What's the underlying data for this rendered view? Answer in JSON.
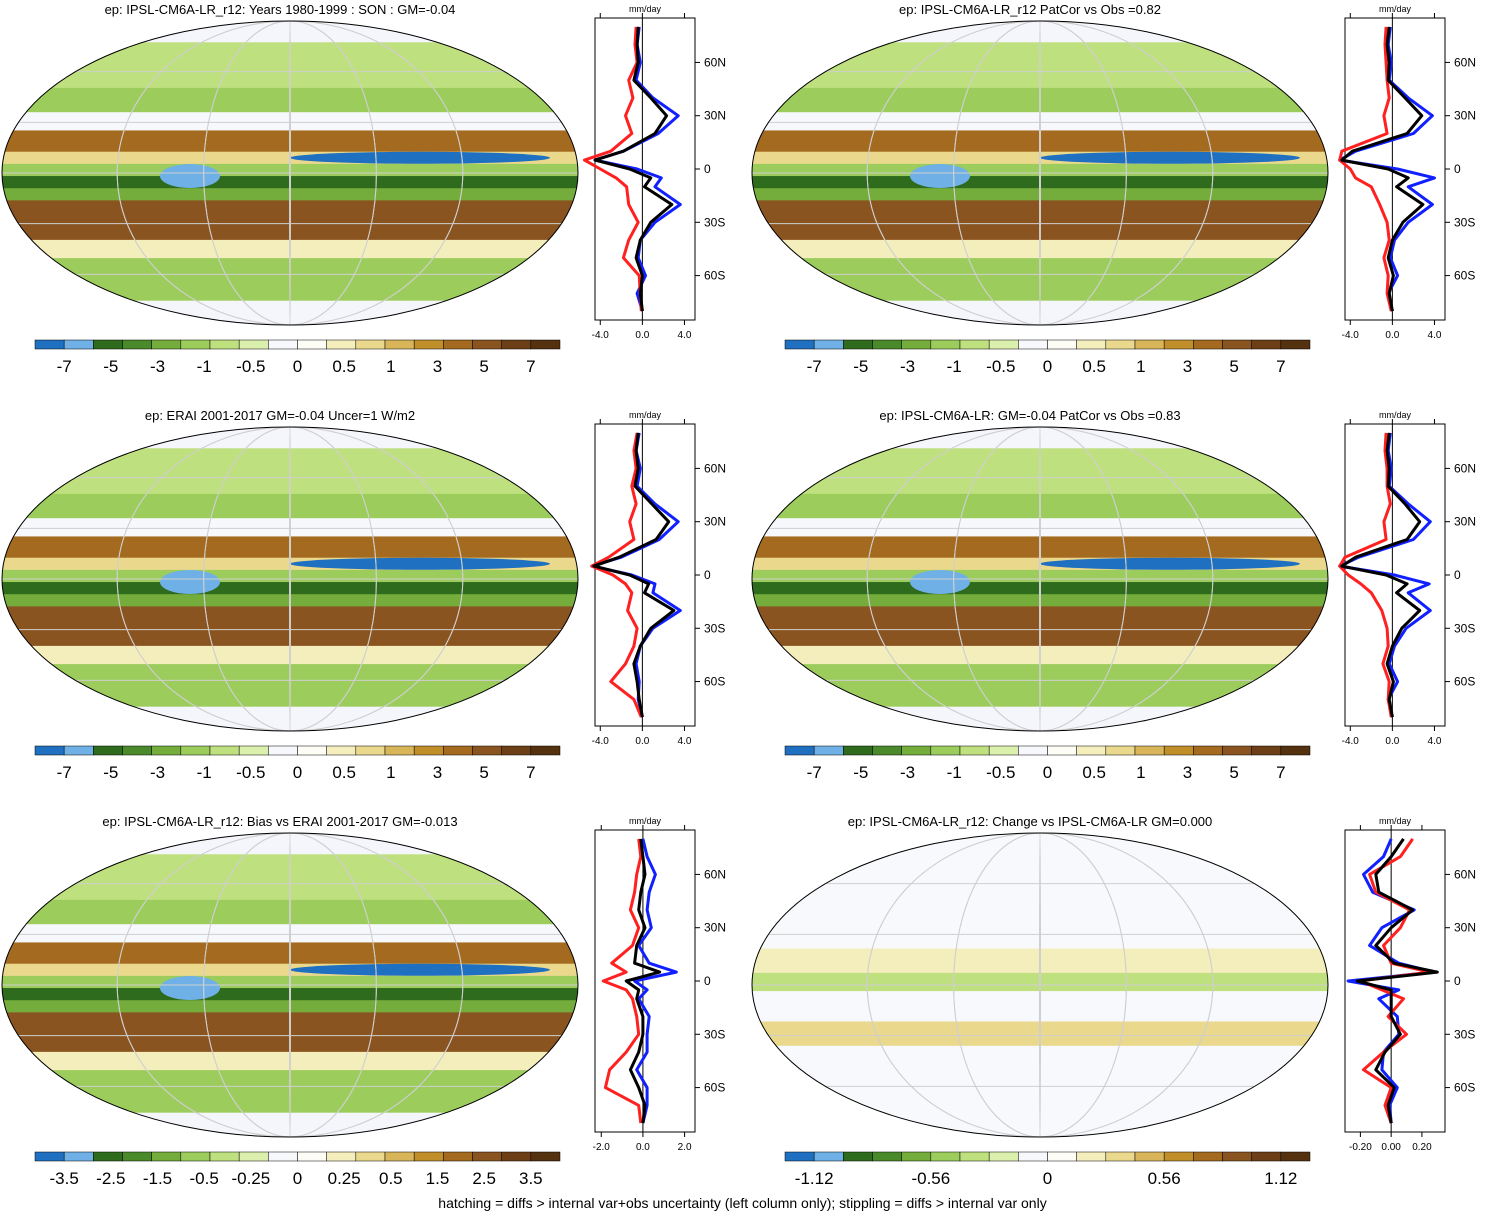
{
  "footer": "hatching = diffs > internal var+obs uncertainty (left column only); stippling = diffs > internal var only",
  "palette": [
    "#1f70c1",
    "#6fb1e6",
    "#2e6b1c",
    "#4a8a2a",
    "#74ad3b",
    "#9ccd5c",
    "#bfe07e",
    "#dcf0ad",
    "#f6f8fb",
    "#fdfdf6",
    "#f4eebc",
    "#ead98d",
    "#d9b55a",
    "#c18f2a",
    "#a46a1f",
    "#8a5420",
    "#6d3f16",
    "#54310f"
  ],
  "line_colors": {
    "model": "#ff2020",
    "obs": "#1020ff",
    "mean": "#000000"
  },
  "chart_data": [
    {
      "type": "heatmap",
      "title": "ep: IPSL-CM6A-LR_r12: Years 1980-1999 : SON : GM=-0.04",
      "colorbar_labels": [
        "-7",
        "-5",
        "-3",
        "-1",
        "-0.5",
        "0",
        "0.5",
        "1",
        "3",
        "5",
        "7"
      ],
      "profile": {
        "unit": "mm/day",
        "xticks": [
          "-4.0",
          "0.0",
          "4.0"
        ],
        "xlim": [
          -4.5,
          5
        ],
        "yticks": [
          "60N",
          "30N",
          "0",
          "30S",
          "60S"
        ],
        "lat": [
          80,
          70,
          60,
          50,
          40,
          30,
          20,
          10,
          5,
          0,
          -5,
          -10,
          -20,
          -30,
          -40,
          -50,
          -60,
          -70,
          -80
        ],
        "series": [
          {
            "name": "",
            "color": "#1020ff",
            "values": [
              -0.3,
              -0.5,
              -0.2,
              -0.6,
              1.0,
              3.4,
              1.5,
              -1.8,
              -4.5,
              -0.5,
              1.8,
              1.2,
              3.6,
              1.2,
              -0.2,
              -0.4,
              0.3,
              -0.5,
              0.0
            ]
          },
          {
            "name": "",
            "color": "#ff2020",
            "values": [
              -0.6,
              -0.7,
              -0.5,
              -1.3,
              -0.9,
              -1.6,
              -1.0,
              -3.0,
              -5.5,
              -4.0,
              -2.5,
              -1.5,
              -1.3,
              -0.4,
              -1.3,
              -1.8,
              -0.3,
              -0.2,
              -0.1
            ]
          },
          {
            "name": "",
            "color": "#000000",
            "values": [
              -0.4,
              -0.5,
              -0.4,
              -0.8,
              0.8,
              2.3,
              1.2,
              -1.8,
              -4.5,
              -1.2,
              0.8,
              0.2,
              2.8,
              0.8,
              -0.2,
              -0.6,
              0.0,
              -0.2,
              0.0
            ]
          }
        ]
      }
    },
    {
      "type": "heatmap",
      "title": "ep: IPSL-CM6A-LR_r12 PatCor vs Obs =0.82",
      "colorbar_labels": [
        "-7",
        "-5",
        "-3",
        "-1",
        "-0.5",
        "0",
        "0.5",
        "1",
        "3",
        "5",
        "7"
      ],
      "profile": {
        "unit": "mm/day",
        "xticks": [
          "-4.0",
          "0.0",
          "4.0"
        ],
        "xlim": [
          -4.5,
          5
        ],
        "yticks": [
          "60N",
          "30N",
          "0",
          "30S",
          "60S"
        ],
        "lat": [
          80,
          70,
          60,
          50,
          40,
          30,
          20,
          10,
          5,
          0,
          -5,
          -10,
          -20,
          -30,
          -40,
          -50,
          -60,
          -70,
          -80
        ],
        "series": [
          {
            "name": "",
            "color": "#1020ff",
            "values": [
              -0.2,
              -0.4,
              -0.1,
              -0.3,
              1.5,
              3.8,
              2.0,
              -3.5,
              -5.0,
              0.5,
              4.0,
              1.5,
              3.8,
              1.5,
              0.2,
              -0.2,
              0.5,
              -0.4,
              0.0
            ]
          },
          {
            "name": "",
            "color": "#ff2020",
            "values": [
              -0.6,
              -0.7,
              -0.6,
              -0.5,
              -0.3,
              -0.8,
              -0.5,
              -4.8,
              -5.0,
              -4.0,
              -3.5,
              -2.0,
              -1.2,
              -0.5,
              -0.3,
              -0.8,
              -0.4,
              -0.5,
              -0.1
            ]
          },
          {
            "name": "",
            "color": "#000000",
            "values": [
              -0.3,
              -0.5,
              -0.3,
              -0.4,
              1.2,
              2.8,
              1.4,
              -3.8,
              -4.8,
              -0.4,
              1.5,
              0.4,
              2.9,
              1.0,
              0.0,
              -0.4,
              0.1,
              -0.3,
              0.0
            ]
          }
        ]
      }
    },
    {
      "type": "heatmap",
      "title": "ep: ERAI 2001-2017 GM=-0.04 Uncer=1 W/m2",
      "colorbar_labels": [
        "-7",
        "-5",
        "-3",
        "-1",
        "-0.5",
        "0",
        "0.5",
        "1",
        "3",
        "5",
        "7"
      ],
      "profile": {
        "unit": "mm/day",
        "xticks": [
          "-4.0",
          "0.0",
          "4.0"
        ],
        "xlim": [
          -4.5,
          5
        ],
        "yticks": [
          "60N",
          "30N",
          "0",
          "30S",
          "60S"
        ],
        "lat": [
          80,
          70,
          60,
          50,
          40,
          30,
          20,
          10,
          5,
          0,
          -5,
          -10,
          -20,
          -30,
          -40,
          -50,
          -60,
          -70,
          -80
        ],
        "series": [
          {
            "name": "",
            "color": "#1020ff",
            "values": [
              -0.3,
              -0.6,
              -0.2,
              -0.5,
              1.2,
              3.4,
              1.6,
              -2.0,
              -4.8,
              -1.0,
              1.2,
              1.0,
              3.6,
              1.0,
              -0.2,
              -0.6,
              -0.3,
              -0.4,
              0.0
            ]
          },
          {
            "name": "",
            "color": "#ff2020",
            "values": [
              -0.5,
              -0.8,
              -0.6,
              -1.0,
              -0.6,
              -1.2,
              -0.8,
              -3.2,
              -4.8,
              -2.8,
              -1.6,
              -1.0,
              -1.4,
              -0.5,
              -0.8,
              -1.6,
              -3.0,
              -0.8,
              -0.1
            ]
          },
          {
            "name": "",
            "color": "#000000",
            "values": [
              -0.4,
              -0.6,
              -0.4,
              -0.7,
              0.9,
              2.5,
              1.3,
              -2.2,
              -4.6,
              -1.2,
              0.6,
              0.2,
              3.0,
              0.8,
              -0.2,
              -0.8,
              -0.5,
              -0.3,
              0.0
            ]
          }
        ]
      }
    },
    {
      "type": "heatmap",
      "title": "ep: IPSL-CM6A-LR: GM=-0.04 PatCor vs Obs =0.83",
      "colorbar_labels": [
        "-7",
        "-5",
        "-3",
        "-1",
        "-0.5",
        "0",
        "0.5",
        "1",
        "3",
        "5",
        "7"
      ],
      "profile": {
        "unit": "mm/day",
        "xticks": [
          "-4.0",
          "0.0",
          "4.0"
        ],
        "xlim": [
          -4.5,
          5
        ],
        "yticks": [
          "60N",
          "30N",
          "0",
          "30S",
          "60S"
        ],
        "lat": [
          80,
          70,
          60,
          50,
          40,
          30,
          20,
          10,
          5,
          0,
          -5,
          -10,
          -20,
          -30,
          -40,
          -50,
          -60,
          -70,
          -80
        ],
        "series": [
          {
            "name": "",
            "color": "#1020ff",
            "values": [
              -0.2,
              -0.4,
              -0.1,
              -0.3,
              1.5,
              3.6,
              2.0,
              -3.2,
              -5.0,
              0.2,
              3.5,
              1.5,
              3.6,
              1.3,
              0.2,
              -0.3,
              0.5,
              -0.4,
              0.0
            ]
          },
          {
            "name": "",
            "color": "#ff2020",
            "values": [
              -0.6,
              -0.7,
              -0.5,
              -0.5,
              -0.2,
              -0.8,
              -0.6,
              -4.5,
              -5.0,
              -4.2,
              -3.0,
              -2.0,
              -1.0,
              -0.5,
              -0.4,
              -0.9,
              -0.3,
              -0.4,
              -0.1
            ]
          },
          {
            "name": "",
            "color": "#000000",
            "values": [
              -0.3,
              -0.5,
              -0.3,
              -0.4,
              1.2,
              2.6,
              1.4,
              -3.5,
              -4.8,
              -0.6,
              1.4,
              0.4,
              2.6,
              0.9,
              0.0,
              -0.5,
              0.1,
              -0.3,
              0.0
            ]
          }
        ]
      }
    },
    {
      "type": "heatmap",
      "title": "ep: IPSL-CM6A-LR_r12: Bias vs ERAI 2001-2017  GM=-0.013",
      "colorbar_labels": [
        "-3.5",
        "-2.5",
        "-1.5",
        "-0.5",
        "-0.25",
        "0",
        "0.25",
        "0.5",
        "1.5",
        "2.5",
        "3.5"
      ],
      "profile": {
        "unit": "mm/day",
        "xticks": [
          "-2.0",
          "0.0",
          "2.0"
        ],
        "xlim": [
          -2.3,
          2.5
        ],
        "yticks": [
          "60N",
          "30N",
          "0",
          "30S",
          "60S"
        ],
        "lat": [
          80,
          70,
          60,
          50,
          40,
          30,
          20,
          10,
          5,
          0,
          -5,
          -10,
          -20,
          -30,
          -40,
          -50,
          -60,
          -70,
          -80
        ],
        "series": [
          {
            "name": "",
            "color": "#1020ff",
            "values": [
              0.0,
              0.2,
              0.6,
              0.3,
              0.2,
              0.4,
              -0.2,
              0.3,
              1.6,
              -0.4,
              0.2,
              -0.2,
              0.3,
              0.2,
              0.2,
              -0.3,
              0.2,
              0.2,
              0.0
            ]
          },
          {
            "name": "",
            "color": "#ff2020",
            "values": [
              -0.2,
              -0.1,
              -0.3,
              -0.4,
              -0.6,
              -0.2,
              -0.5,
              -1.5,
              -0.8,
              -1.9,
              -0.8,
              -0.5,
              -0.3,
              -0.2,
              -0.8,
              -1.6,
              -1.8,
              -0.2,
              -0.1
            ]
          },
          {
            "name": "",
            "color": "#000000",
            "values": [
              -0.1,
              0.0,
              0.1,
              -0.1,
              -0.2,
              0.1,
              -0.3,
              -0.4,
              0.8,
              -0.8,
              -0.2,
              -0.3,
              0.0,
              0.0,
              -0.2,
              -0.6,
              -0.2,
              0.1,
              0.0
            ]
          }
        ]
      }
    },
    {
      "type": "heatmap",
      "title": "ep: IPSL-CM6A-LR_r12: Change vs IPSL-CM6A-LR GM=0.000",
      "colorbar_labels": [
        "-1.12",
        "-0.56",
        "0",
        "0.56",
        "1.12"
      ],
      "profile": {
        "unit": "mm/day",
        "xticks": [
          "-0.20",
          "0.00",
          "0.20"
        ],
        "xlim": [
          -0.3,
          0.35
        ],
        "yticks": [
          "60N",
          "30N",
          "0",
          "30S",
          "60S"
        ],
        "lat": [
          80,
          70,
          60,
          50,
          40,
          30,
          20,
          10,
          5,
          0,
          -5,
          -10,
          -20,
          -30,
          -40,
          -50,
          -60,
          -70,
          -80
        ],
        "series": [
          {
            "name": "",
            "color": "#1020ff",
            "values": [
              0.0,
              -0.05,
              -0.18,
              -0.12,
              0.15,
              -0.06,
              -0.14,
              0.05,
              0.28,
              -0.28,
              0.05,
              -0.08,
              0.04,
              0.05,
              -0.05,
              -0.06,
              0.04,
              -0.01,
              0.0
            ]
          },
          {
            "name": "",
            "color": "#ff2020",
            "values": [
              0.14,
              0.06,
              -0.14,
              -0.1,
              0.12,
              0.06,
              -0.05,
              0.0,
              0.25,
              -0.2,
              -0.06,
              0.08,
              -0.02,
              0.1,
              -0.05,
              -0.18,
              0.0,
              -0.04,
              0.0
            ]
          },
          {
            "name": "",
            "color": "#000000",
            "values": [
              0.08,
              0.0,
              -0.1,
              -0.08,
              0.14,
              0.0,
              -0.1,
              0.02,
              0.3,
              -0.22,
              0.0,
              0.0,
              0.0,
              0.06,
              -0.04,
              -0.1,
              0.02,
              -0.02,
              0.0
            ]
          }
        ]
      }
    }
  ]
}
